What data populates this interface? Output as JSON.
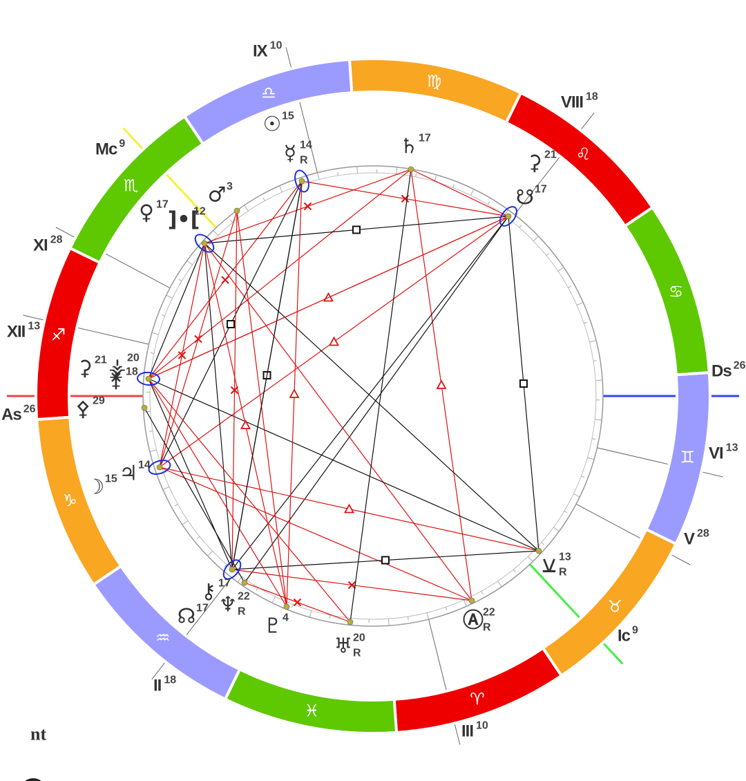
{
  "zodiac": [
    {
      "glyph": "♈",
      "color": "#ee0000"
    },
    {
      "glyph": "♉",
      "color": "#f9a623"
    },
    {
      "glyph": "♊",
      "color": "#9b9bff"
    },
    {
      "glyph": "♋",
      "color": "#5ec800"
    },
    {
      "glyph": "♌",
      "color": "#ee0000"
    },
    {
      "glyph": "♍",
      "color": "#f9a623"
    },
    {
      "glyph": "♎",
      "color": "#9b9bff"
    },
    {
      "glyph": "♏",
      "color": "#5ec800"
    },
    {
      "glyph": "♐",
      "color": "#ee0000"
    },
    {
      "glyph": "♑",
      "color": "#f9a623"
    },
    {
      "glyph": "♒",
      "color": "#9b9bff"
    },
    {
      "glyph": "♓",
      "color": "#5ec800"
    }
  ],
  "houses": [
    {
      "label": "II",
      "degree": 18
    },
    {
      "label": "III",
      "degree": 10
    },
    {
      "label": "V",
      "degree": 28
    },
    {
      "label": "VI",
      "degree": 13
    },
    {
      "label": "VIII",
      "degree": 18
    },
    {
      "label": "IX",
      "degree": 10
    },
    {
      "label": "XI",
      "degree": 28
    },
    {
      "label": "XII",
      "degree": 13
    }
  ],
  "angles": [
    {
      "label": "As",
      "degree": 26,
      "color": "#ee4444"
    },
    {
      "label": "Mc",
      "degree": 9,
      "color": "#f5f03a"
    },
    {
      "label": "Ds",
      "degree": 26,
      "color": "#3344ee"
    },
    {
      "label": "Ic",
      "degree": 9,
      "color": "#44ee44"
    }
  ],
  "planets": [
    {
      "glyph": "☉",
      "degree": 15
    },
    {
      "glyph": "☿",
      "degree": 14,
      "retro": "R"
    },
    {
      "glyph": "♄",
      "degree": 17
    },
    {
      "glyph": "⚳",
      "degree": 21
    },
    {
      "glyph": "☋",
      "degree": 17
    },
    {
      "glyph": "♂",
      "degree": 3
    },
    {
      "glyph": "♀",
      "degree": 17
    },
    {
      "glyph": "]•[",
      "degree": 12
    },
    {
      "glyph": "⚳",
      "degree": 21
    },
    {
      "glyph": "⚶",
      "degree": 20
    },
    {
      "glyph": "⚵",
      "degree": 18
    },
    {
      "glyph": "⚴",
      "degree": 29
    },
    {
      "glyph": "♃",
      "degree": 14
    },
    {
      "glyph": "☽",
      "degree": 15
    },
    {
      "glyph": "⚷",
      "degree": 17
    },
    {
      "glyph": "♆",
      "degree": 22,
      "retro": "R"
    },
    {
      "glyph": "☊",
      "degree": 17
    },
    {
      "glyph": "♇",
      "degree": 4
    },
    {
      "glyph": "♅",
      "degree": 20,
      "retro": "R"
    },
    {
      "glyph": "Ⓐ",
      "degree": 22,
      "retro": "R"
    },
    {
      "glyph": "⚺",
      "degree": 13,
      "retro": "R"
    }
  ],
  "footer": "nt"
}
